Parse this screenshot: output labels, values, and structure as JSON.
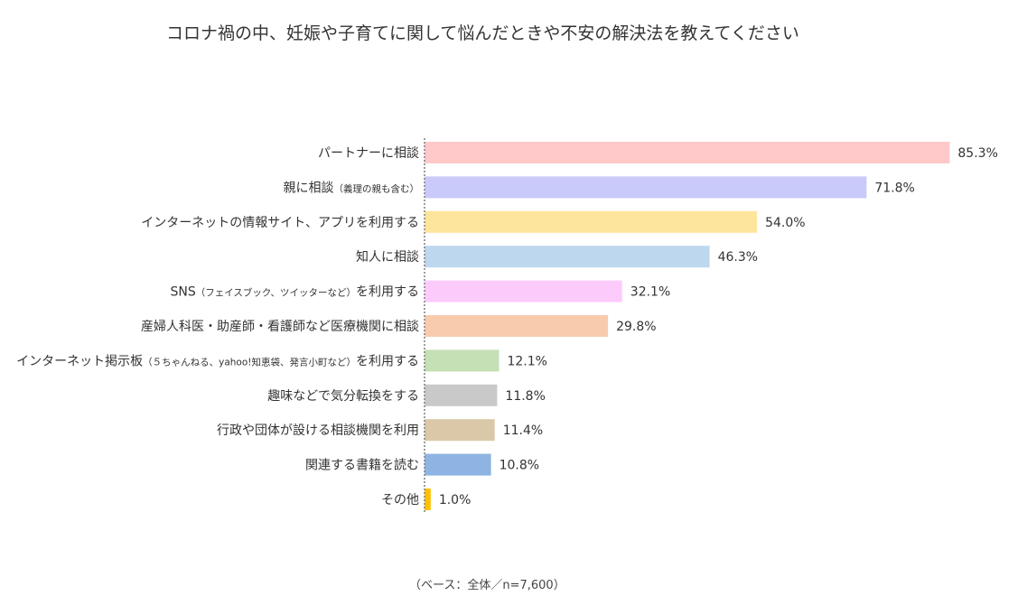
{
  "title": "コロナ禍の中、妊娠や子育てに関して悩んだときや不安の解決法を教えてください",
  "footnote": "（ベース：全体／n=7,600）",
  "chart_data": {
    "type": "bar",
    "orientation": "horizontal",
    "categories": [
      {
        "main": "パートナーに相談",
        "note": "",
        "suffix": ""
      },
      {
        "main": "親に相談",
        "note": "（義理の親も含む）",
        "suffix": ""
      },
      {
        "main": "インターネットの情報サイト、アプリを利用する",
        "note": "",
        "suffix": ""
      },
      {
        "main": "知人に相談",
        "note": "",
        "suffix": ""
      },
      {
        "main": "SNS",
        "note": "（フェイスブック、ツイッターなど）",
        "suffix": "を利用する"
      },
      {
        "main": "産婦人科医・助産師・看護師など医療機関に相談",
        "note": "",
        "suffix": ""
      },
      {
        "main": "インターネット掲示板",
        "note": "（５ちゃんねる、yahoo!知恵袋、発言小町など）",
        "suffix": "を利用する"
      },
      {
        "main": "趣味などで気分転換をする",
        "note": "",
        "suffix": ""
      },
      {
        "main": "行政や団体が設ける相談機関を利用",
        "note": "",
        "suffix": ""
      },
      {
        "main": "関連する書籍を読む",
        "note": "",
        "suffix": ""
      },
      {
        "main": "その他",
        "note": "",
        "suffix": ""
      }
    ],
    "values": [
      85.3,
      71.8,
      54.0,
      46.3,
      32.1,
      29.8,
      12.1,
      11.8,
      11.4,
      10.8,
      1.0
    ],
    "value_labels": [
      "85.3%",
      "71.8%",
      "54.0%",
      "46.3%",
      "32.1%",
      "29.8%",
      "12.1%",
      "11.8%",
      "11.4%",
      "10.8%",
      "1.0%"
    ],
    "colors": [
      "#ffc9c9",
      "#c9c9fa",
      "#fde59c",
      "#bdd7ee",
      "#fccbfc",
      "#f8cbad",
      "#c5e0b4",
      "#c9c9c9",
      "#dbc8a9",
      "#8db4e2",
      "#ffc000"
    ],
    "axis_color": "#7f7f7f",
    "grid": false,
    "legend": "none"
  }
}
